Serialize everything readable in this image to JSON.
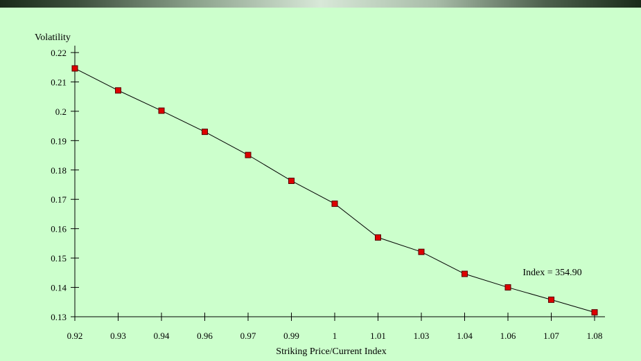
{
  "chart_data": {
    "type": "line",
    "ylabel": "Volatility",
    "xlabel": "Striking Price/Current Index",
    "annotation": "Index = 354.90",
    "categories": [
      "0.92",
      "0.93",
      "0.94",
      "0.96",
      "0.97",
      "0.99",
      "1",
      "1.01",
      "1.03",
      "1.04",
      "1.06",
      "1.07",
      "1.08"
    ],
    "y_ticks": [
      "0.13",
      "0.14",
      "0.15",
      "0.16",
      "0.17",
      "0.18",
      "0.19",
      "0.2",
      "0.21",
      "0.22"
    ],
    "ylim": [
      0.13,
      0.22
    ],
    "series": [
      {
        "values": [
          0.2146,
          0.2071,
          0.2002,
          0.193,
          0.1851,
          0.1763,
          0.1685,
          0.157,
          0.1521,
          0.1446,
          0.14,
          0.1358,
          0.1315
        ]
      }
    ],
    "line_color": "#000000",
    "marker_color": "#dd0000",
    "background_color": "#ccffcc",
    "grid": false
  }
}
